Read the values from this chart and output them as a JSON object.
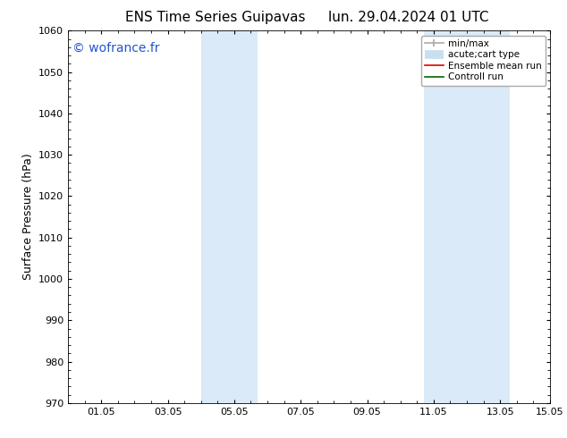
{
  "title_left": "ENS Time Series Guipavas",
  "title_right": "lun. 29.04.2024 01 UTC",
  "ylabel": "Surface Pressure (hPa)",
  "ylim": [
    970,
    1060
  ],
  "yticks": [
    970,
    980,
    990,
    1000,
    1010,
    1020,
    1030,
    1040,
    1050,
    1060
  ],
  "xlim": [
    0.0,
    14.5
  ],
  "xtick_positions": [
    1,
    3,
    5,
    7,
    9,
    11,
    13,
    14.5
  ],
  "xtick_labels": [
    "01.05",
    "03.05",
    "05.05",
    "07.05",
    "09.05",
    "11.05",
    "13.05",
    "15.05"
  ],
  "watermark": "© wofrance.fr",
  "watermark_color": "#2255cc",
  "shaded_regions": [
    {
      "xmin": 4.0,
      "xmax": 5.7
    },
    {
      "xmin": 10.7,
      "xmax": 13.3
    }
  ],
  "shade_color": "#daeaf8",
  "background_color": "#ffffff",
  "legend_entries": [
    {
      "label": "min/max",
      "color": "#aaaaaa",
      "lw": 1.2
    },
    {
      "label": "acute;cart type",
      "color": "#c8dff0",
      "lw": 7
    },
    {
      "label": "Ensemble mean run",
      "color": "#dd0000",
      "lw": 1.2
    },
    {
      "label": "Controll run",
      "color": "#006600",
      "lw": 1.2
    }
  ],
  "title_fontsize": 11,
  "axis_label_fontsize": 9,
  "tick_fontsize": 8,
  "watermark_fontsize": 10,
  "legend_fontsize": 7.5
}
